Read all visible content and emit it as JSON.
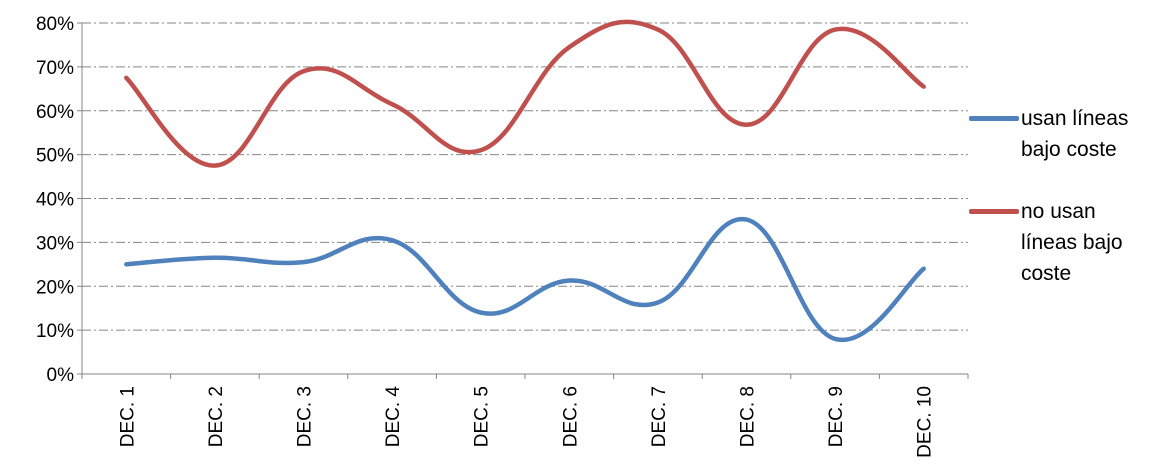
{
  "chart_data": {
    "type": "line",
    "categories": [
      "DEC. 1",
      "DEC. 2",
      "DEC. 3",
      "DEC. 4",
      "DEC. 5",
      "DEC. 6",
      "DEC. 7",
      "DEC. 8",
      "DEC. 9",
      "DEC. 10"
    ],
    "series": [
      {
        "name": "usan líneas bajo coste",
        "color": "#4f81bd",
        "values": [
          25,
          26.5,
          25.5,
          30.5,
          14,
          21.3,
          16.3,
          35.2,
          8,
          24
        ]
      },
      {
        "name": "no usan líneas bajo coste",
        "color": "#c0504d",
        "values": [
          67.5,
          47.5,
          69,
          61.5,
          51,
          74.5,
          78.5,
          56.8,
          78.5,
          65.5
        ]
      }
    ],
    "ylim": [
      0,
      80
    ],
    "yticks": [
      "0%",
      "10%",
      "20%",
      "30%",
      "40%",
      "50%",
      "60%",
      "70%",
      "80%"
    ],
    "grid": "horizontal dash-dot",
    "legend_position": "right",
    "smooth": true
  },
  "legend": {
    "items": [
      {
        "label": "usan líneas bajo coste",
        "color": "#4f81bd"
      },
      {
        "label": "no usan líneas bajo coste",
        "color": "#c0504d"
      }
    ]
  }
}
